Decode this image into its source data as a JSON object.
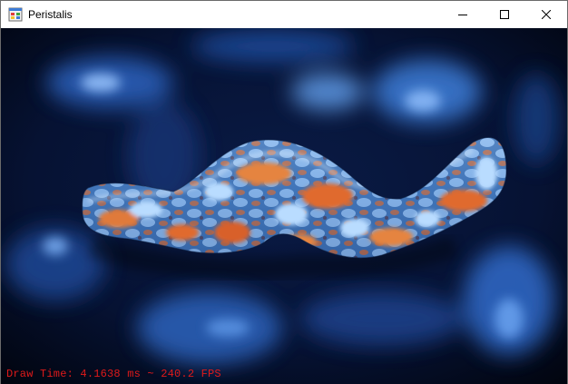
{
  "window": {
    "title": "Peristalis",
    "app_icon": "windows-forms-app-icon",
    "controls": [
      {
        "name": "minimize",
        "icon": "minimize-icon"
      },
      {
        "name": "maximize",
        "icon": "maximize-icon"
      },
      {
        "name": "close",
        "icon": "close-icon"
      }
    ]
  },
  "scene": {
    "background_color": "#020814",
    "nebula_color": "#2a5fb8",
    "tube_colors": {
      "blue": "#7fb7f0",
      "orange": "#d8632a"
    }
  },
  "status": {
    "text": "Draw Time: 4.1638 ms ~ 240.2 FPS",
    "color": "#e01a1a"
  }
}
